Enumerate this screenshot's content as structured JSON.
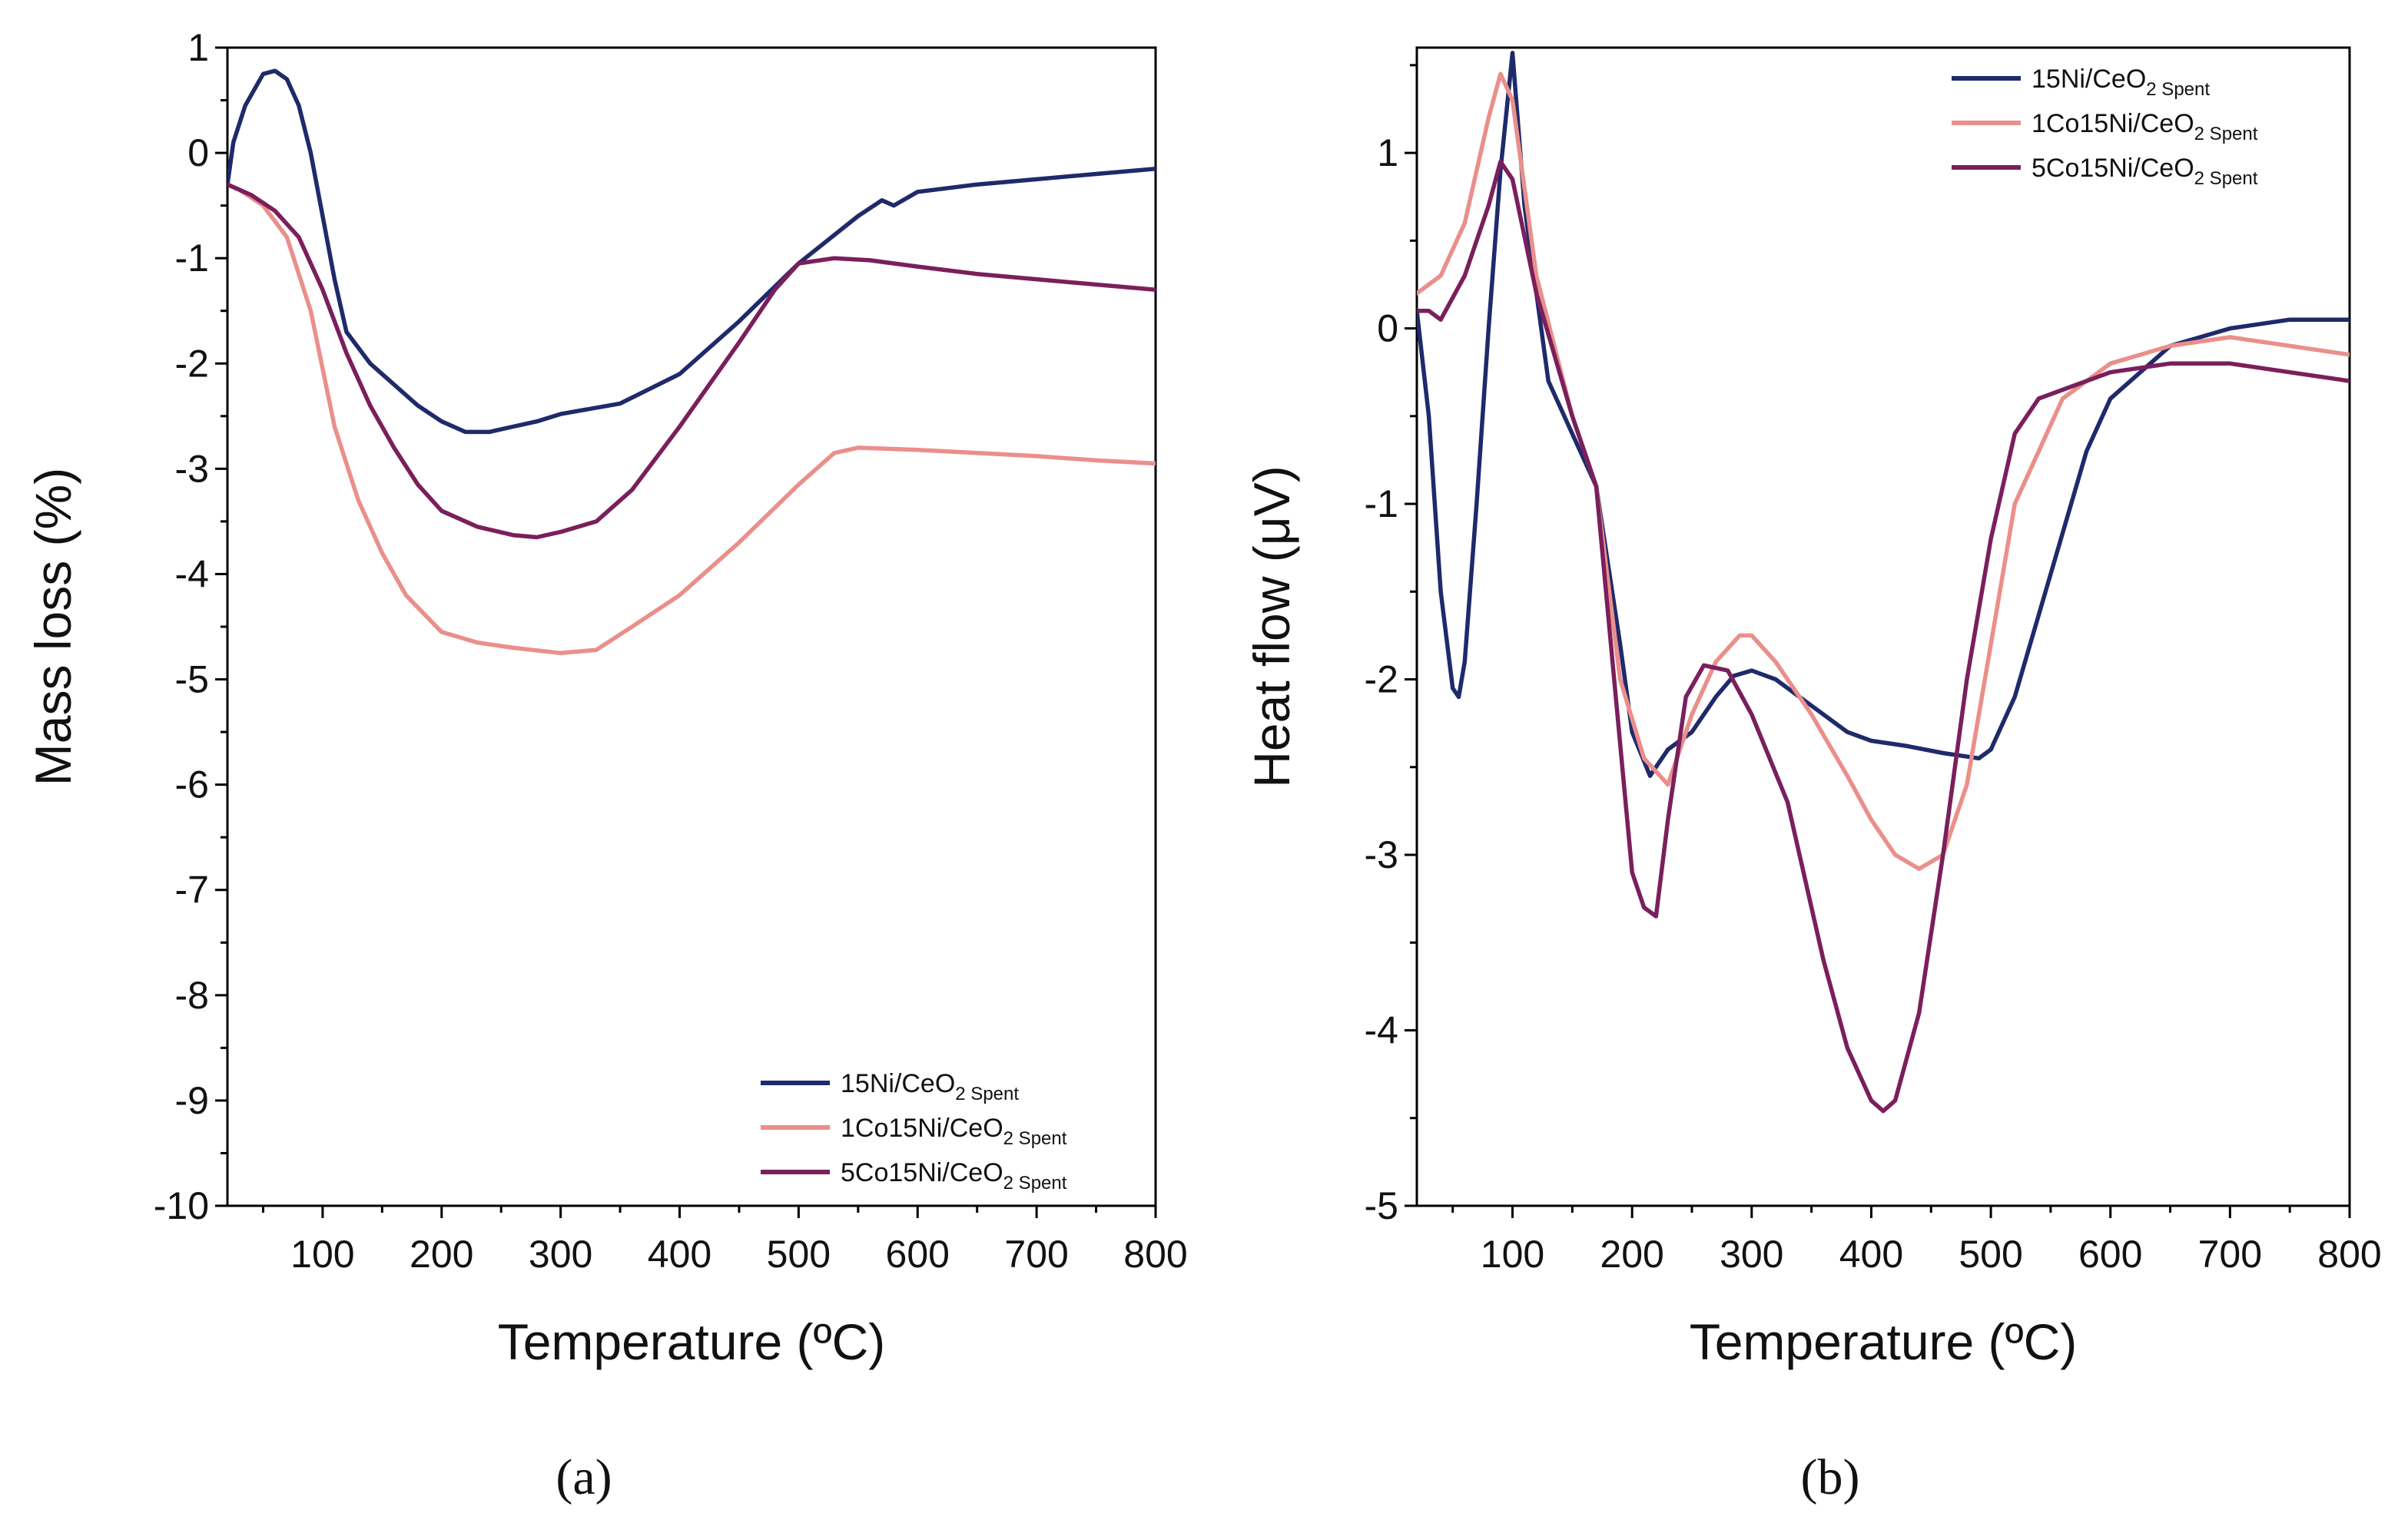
{
  "chart_data": [
    {
      "type": "line",
      "panel_label": "(a)",
      "xlabel": "Temperature (ºC)",
      "ylabel": "Mass loss (%)",
      "xlim": [
        20,
        800
      ],
      "ylim": [
        -10,
        1
      ],
      "xticks": [
        100,
        200,
        300,
        400,
        500,
        600,
        700,
        800
      ],
      "yticks": [
        1,
        0,
        -1,
        -2,
        -3,
        -4,
        -5,
        -6,
        -7,
        -8,
        -9,
        -10
      ],
      "legend_position": "bottom-right",
      "series": [
        {
          "name": "15Ni/CeO2 Spent",
          "label_main": "15Ni/CeO",
          "label_sub1": "2",
          "label_sub2": " Spent",
          "color": "#1f2a6b",
          "x": [
            20,
            25,
            35,
            50,
            60,
            70,
            80,
            90,
            100,
            110,
            120,
            140,
            160,
            180,
            200,
            220,
            240,
            260,
            280,
            300,
            350,
            400,
            450,
            500,
            550,
            570,
            580,
            600,
            650,
            700,
            750,
            800
          ],
          "y": [
            -0.3,
            0.1,
            0.45,
            0.75,
            0.78,
            0.7,
            0.45,
            0.0,
            -0.6,
            -1.2,
            -1.7,
            -2.0,
            -2.2,
            -2.4,
            -2.55,
            -2.65,
            -2.65,
            -2.6,
            -2.55,
            -2.48,
            -2.38,
            -2.1,
            -1.6,
            -1.05,
            -0.6,
            -0.45,
            -0.5,
            -0.37,
            -0.3,
            -0.25,
            -0.2,
            -0.15
          ]
        },
        {
          "name": "1Co15Ni/CeO2 Spent",
          "label_main": "1Co15Ni/CeO",
          "label_sub1": "2",
          "label_sub2": " Spent",
          "color": "#ea8f8a",
          "x": [
            20,
            30,
            50,
            70,
            90,
            110,
            130,
            150,
            170,
            200,
            230,
            260,
            300,
            330,
            360,
            400,
            450,
            500,
            530,
            550,
            600,
            650,
            700,
            750,
            800
          ],
          "y": [
            -0.3,
            -0.35,
            -0.5,
            -0.8,
            -1.5,
            -2.6,
            -3.3,
            -3.8,
            -4.2,
            -4.55,
            -4.65,
            -4.7,
            -4.75,
            -4.72,
            -4.5,
            -4.2,
            -3.7,
            -3.15,
            -2.85,
            -2.8,
            -2.82,
            -2.85,
            -2.88,
            -2.92,
            -2.95
          ]
        },
        {
          "name": "5Co15Ni/CeO2 Spent",
          "label_main": "5Co15Ni/CeO",
          "label_sub1": "2",
          "label_sub2": " Spent",
          "color": "#7a1f5c",
          "x": [
            20,
            40,
            60,
            80,
            100,
            120,
            140,
            160,
            180,
            200,
            230,
            260,
            280,
            300,
            330,
            360,
            400,
            450,
            480,
            500,
            530,
            560,
            600,
            650,
            700,
            750,
            800
          ],
          "y": [
            -0.3,
            -0.4,
            -0.55,
            -0.8,
            -1.3,
            -1.9,
            -2.4,
            -2.8,
            -3.15,
            -3.4,
            -3.55,
            -3.63,
            -3.65,
            -3.6,
            -3.5,
            -3.2,
            -2.6,
            -1.8,
            -1.3,
            -1.05,
            -1.0,
            -1.02,
            -1.08,
            -1.15,
            -1.2,
            -1.25,
            -1.3
          ]
        }
      ]
    },
    {
      "type": "line",
      "panel_label": "(b)",
      "xlabel": "Temperature (ºC)",
      "ylabel": "Heat flow (μV)",
      "xlim": [
        20,
        800
      ],
      "ylim": [
        -5,
        1.6
      ],
      "xticks": [
        100,
        200,
        300,
        400,
        500,
        600,
        700,
        800
      ],
      "yticks": [
        1,
        0,
        -1,
        -2,
        -3,
        -4,
        -5
      ],
      "legend_position": "top-right",
      "series": [
        {
          "name": "15Ni/CeO2 Spent",
          "label_main": "15Ni/CeO",
          "label_sub1": "2",
          "label_sub2": " Spent",
          "color": "#1f2a6b",
          "x": [
            20,
            30,
            40,
            50,
            55,
            60,
            70,
            80,
            90,
            100,
            110,
            130,
            150,
            170,
            190,
            200,
            215,
            230,
            250,
            270,
            285,
            300,
            320,
            350,
            380,
            400,
            430,
            460,
            490,
            500,
            520,
            550,
            580,
            600,
            650,
            700,
            750,
            800
          ],
          "y": [
            0.1,
            -0.5,
            -1.5,
            -2.05,
            -2.1,
            -1.9,
            -1.0,
            0.0,
            0.9,
            1.57,
            0.7,
            -0.3,
            -0.6,
            -0.9,
            -1.8,
            -2.3,
            -2.55,
            -2.4,
            -2.3,
            -2.1,
            -1.98,
            -1.95,
            -2.0,
            -2.15,
            -2.3,
            -2.35,
            -2.38,
            -2.42,
            -2.45,
            -2.4,
            -2.1,
            -1.4,
            -0.7,
            -0.4,
            -0.1,
            0.0,
            0.05,
            0.05
          ]
        },
        {
          "name": "1Co15Ni/CeO2 Spent",
          "label_main": "1Co15Ni/CeO",
          "label_sub1": "2",
          "label_sub2": " Spent",
          "color": "#ea8f8a",
          "x": [
            20,
            40,
            60,
            80,
            90,
            100,
            120,
            150,
            170,
            190,
            210,
            230,
            250,
            270,
            290,
            300,
            320,
            350,
            380,
            400,
            420,
            440,
            460,
            480,
            500,
            520,
            560,
            600,
            650,
            700,
            750,
            800
          ],
          "y": [
            0.2,
            0.3,
            0.6,
            1.2,
            1.45,
            1.3,
            0.3,
            -0.5,
            -0.9,
            -2.0,
            -2.45,
            -2.6,
            -2.2,
            -1.9,
            -1.75,
            -1.75,
            -1.9,
            -2.2,
            -2.55,
            -2.8,
            -3.0,
            -3.08,
            -3.0,
            -2.6,
            -1.8,
            -1.0,
            -0.4,
            -0.2,
            -0.1,
            -0.05,
            -0.1,
            -0.15
          ]
        },
        {
          "name": "5Co15Ni/CeO2 Spent",
          "label_main": "5Co15Ni/CeO",
          "label_sub1": "2",
          "label_sub2": " Spent",
          "color": "#7a1f5c",
          "x": [
            20,
            30,
            40,
            60,
            80,
            90,
            100,
            120,
            150,
            170,
            185,
            200,
            210,
            220,
            230,
            245,
            260,
            280,
            300,
            330,
            360,
            380,
            400,
            410,
            420,
            440,
            460,
            480,
            500,
            520,
            540,
            560,
            600,
            650,
            700,
            750,
            800
          ],
          "y": [
            0.1,
            0.1,
            0.05,
            0.3,
            0.7,
            0.95,
            0.85,
            0.2,
            -0.5,
            -0.9,
            -2.0,
            -3.1,
            -3.3,
            -3.35,
            -2.8,
            -2.1,
            -1.92,
            -1.95,
            -2.2,
            -2.7,
            -3.6,
            -4.1,
            -4.4,
            -4.46,
            -4.4,
            -3.9,
            -3.0,
            -2.0,
            -1.2,
            -0.6,
            -0.4,
            -0.35,
            -0.25,
            -0.2,
            -0.2,
            -0.25,
            -0.3
          ]
        }
      ]
    }
  ]
}
